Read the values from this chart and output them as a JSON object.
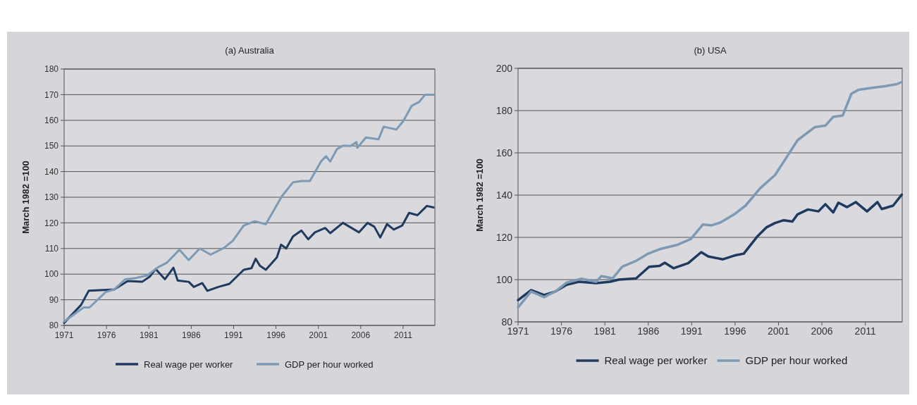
{
  "chart_data": [
    {
      "type": "line",
      "title": "(a) Australia",
      "ylabel": "March 1982 =100",
      "xlim": [
        1971,
        2014.75
      ],
      "xticks": [
        1971,
        1976,
        1981,
        1986,
        1991,
        1996,
        2001,
        2006,
        2011
      ],
      "ylim": [
        80,
        180
      ],
      "yticks": [
        80,
        90,
        100,
        110,
        120,
        130,
        140,
        150,
        160,
        170,
        180
      ],
      "grid": "y",
      "legend": "bottom",
      "line_style": "solid",
      "series": [
        {
          "name": "Real wage per worker",
          "color": "#1f3a5f",
          "x": [
            1971,
            1973,
            1973.9,
            1976.9,
            1978.5,
            1980.2,
            1981.1,
            1981.8,
            1982.9,
            1983.9,
            1984.4,
            1985.7,
            1986.3,
            1987.3,
            1987.9,
            1989.2,
            1990.5,
            1992.2,
            1993.1,
            1993.6,
            1994.1,
            1994.8,
            1996.1,
            1996.6,
            1997.2,
            1998,
            1999,
            1999.8,
            2000.6,
            2001.8,
            2002.4,
            2003.9,
            2005.8,
            2006.8,
            2007.6,
            2008.3,
            2009.1,
            2009.9,
            2010.9,
            2011.7,
            2012.7,
            2013.8,
            2014.6
          ],
          "values": [
            81,
            88,
            93.5,
            94,
            97.3,
            97,
            99,
            102,
            98,
            102.5,
            97.5,
            97,
            95,
            96.5,
            93.5,
            95,
            96.2,
            101.7,
            102.3,
            106,
            103.3,
            101.7,
            106.5,
            111.5,
            110,
            114.7,
            117,
            113.6,
            116.3,
            118,
            116,
            120,
            116.3,
            120,
            118.5,
            114.3,
            119.5,
            117.4,
            119,
            123.9,
            123,
            126.6,
            126
          ]
        },
        {
          "name": "GDP per hour worked",
          "color": "#7d9ab5",
          "x": [
            1971,
            1973.3,
            1974,
            1975.9,
            1976.9,
            1978.2,
            1979.5,
            1980.8,
            1982.1,
            1983.1,
            1984.6,
            1985.7,
            1987,
            1988.3,
            1989.9,
            1990.9,
            1992.2,
            1993.5,
            1994.8,
            1996.7,
            1998,
            1999,
            2000,
            2001.3,
            2001.9,
            2002.4,
            2003.2,
            2003.9,
            2004.8,
            2005.5,
            2005.6,
            2006.6,
            2008.1,
            2008.7,
            2010.2,
            2011,
            2012,
            2012.9,
            2013.6,
            2014.6
          ],
          "values": [
            81.5,
            87,
            87,
            93,
            94,
            98,
            98.5,
            99.5,
            102.7,
            104.4,
            109.5,
            105.5,
            110,
            107.6,
            110.3,
            113,
            119,
            120.6,
            119.5,
            130.4,
            135.8,
            136.3,
            136.3,
            143.9,
            146,
            143.9,
            148.8,
            150.1,
            150,
            151.5,
            149.3,
            153.3,
            152.6,
            157.5,
            156.4,
            159.6,
            165.6,
            167.2,
            170,
            170
          ]
        }
      ]
    },
    {
      "type": "line",
      "title": "(b) USA",
      "ylabel": "March 1982 =100",
      "xlim": [
        1971,
        2015.25
      ],
      "xticks": [
        1971,
        1976,
        1981,
        1986,
        1991,
        1996,
        2001,
        2006,
        2011
      ],
      "ylim": [
        80,
        200
      ],
      "yticks": [
        80,
        100,
        120,
        140,
        160,
        180,
        200
      ],
      "grid": "y",
      "legend": "bottom",
      "line_style": "solid",
      "series": [
        {
          "name": "Real wage per worker",
          "color": "#1f3a5f",
          "x": [
            1971,
            1972.5,
            1974,
            1975.3,
            1976.6,
            1978,
            1980,
            1981.6,
            1982.6,
            1984.6,
            1986.1,
            1987.3,
            1987.9,
            1988.9,
            1990.6,
            1992.1,
            1992.9,
            1994.6,
            1996.1,
            1997,
            1998.6,
            1999.6,
            2000.6,
            2001.6,
            2002.6,
            2003.2,
            2004.4,
            2005.6,
            2006.4,
            2007.3,
            2007.9,
            2008.9,
            2009.9,
            2011.2,
            2012.4,
            2012.9,
            2014.2,
            2015.2
          ],
          "values": [
            90.3,
            95,
            92.7,
            94.4,
            97.6,
            99,
            98.3,
            99,
            100,
            100.6,
            106.1,
            106.5,
            108,
            105.4,
            107.8,
            113,
            111,
            109.6,
            111.6,
            112.3,
            120.6,
            124.7,
            126.8,
            128.1,
            127.5,
            130.9,
            133.2,
            132.3,
            135.7,
            131.8,
            136.4,
            134.3,
            136.7,
            132.3,
            136.7,
            133.4,
            135,
            140.2
          ]
        },
        {
          "name": "GDP per hour worked",
          "color": "#7d9ab5",
          "x": [
            1971,
            1972.5,
            1974,
            1975.3,
            1976.6,
            1978.3,
            1980,
            1980.6,
            1981.9,
            1983,
            1984.6,
            1986,
            1987.3,
            1989.3,
            1990.9,
            1992.3,
            1993.3,
            1994.3,
            1995.9,
            1997.2,
            1998.9,
            2000.6,
            2001.9,
            2003.2,
            2005.2,
            2006.4,
            2007.3,
            2008.4,
            2009.4,
            2010.2,
            2011.9,
            2013.2,
            2014.6,
            2015.2
          ],
          "values": [
            86.9,
            94.4,
            91.7,
            94.4,
            98.6,
            100.4,
            99,
            101.7,
            100.6,
            106.1,
            108.9,
            112.3,
            114.4,
            116.4,
            119.2,
            126.1,
            125.7,
            127,
            130.9,
            135,
            143.3,
            149.5,
            157.7,
            166,
            172.2,
            172.9,
            177,
            177.7,
            188,
            189.8,
            190.8,
            191.5,
            192.5,
            193.5
          ]
        }
      ]
    }
  ]
}
